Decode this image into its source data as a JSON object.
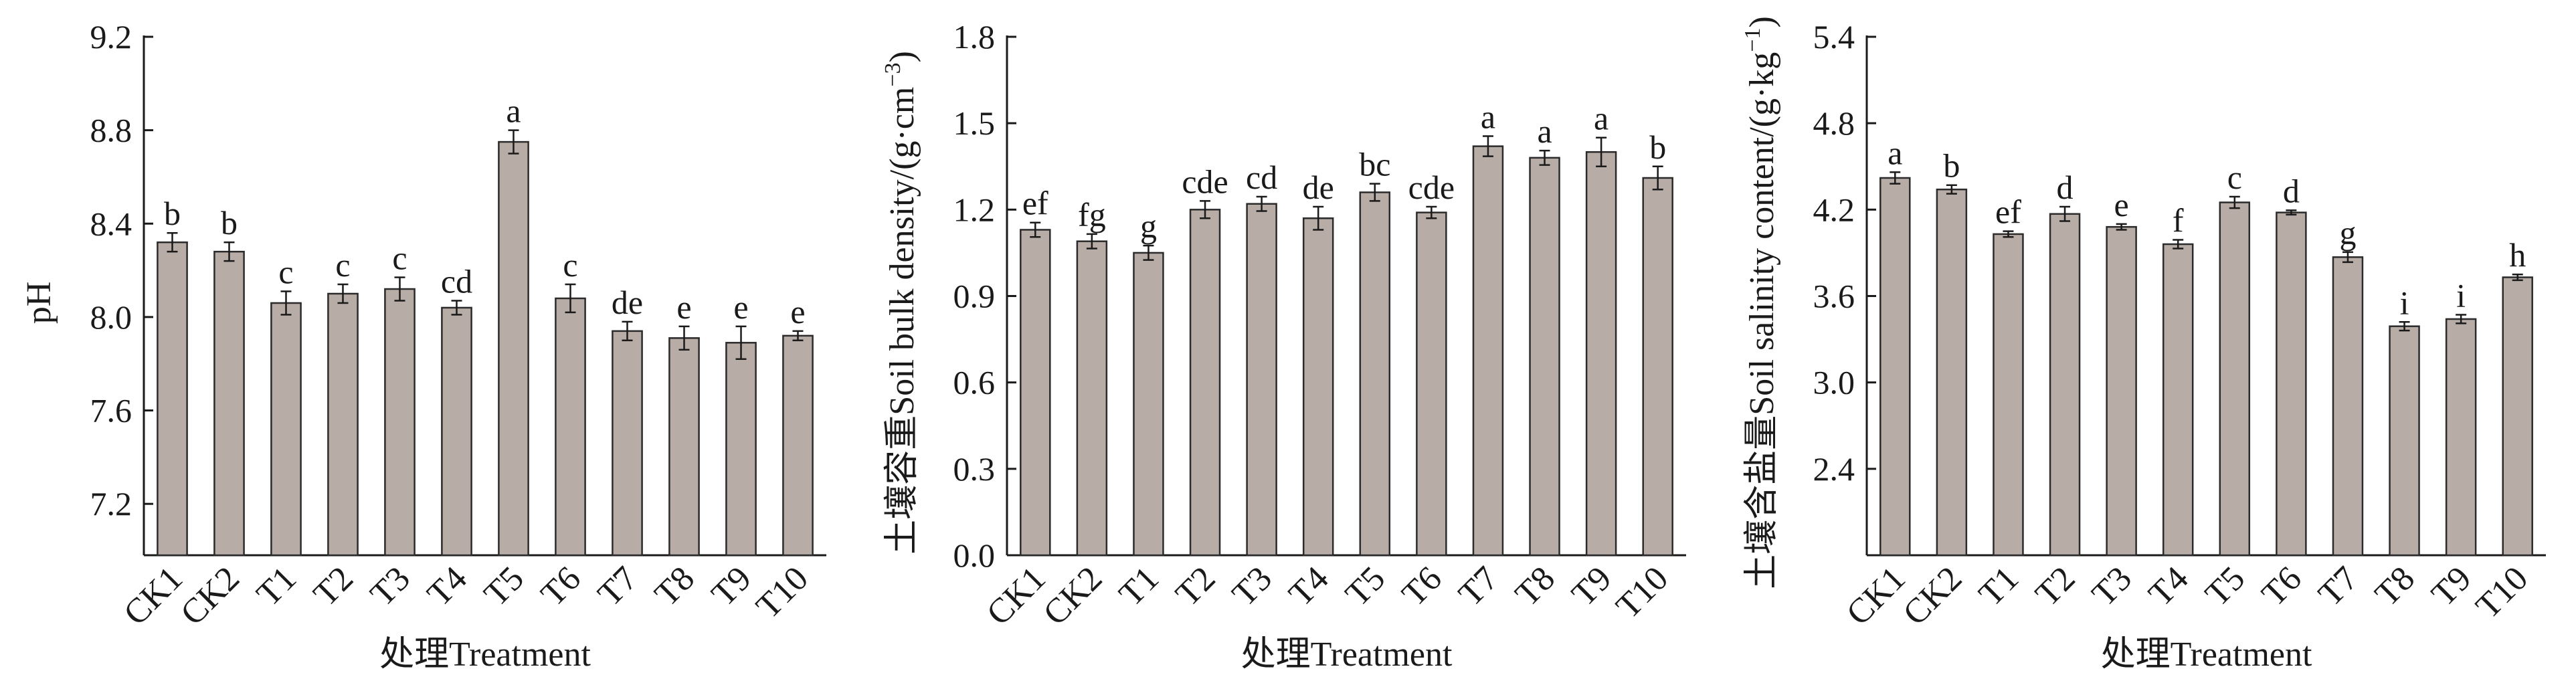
{
  "chart_data": [
    {
      "type": "bar",
      "categories": [
        "CK1",
        "CK2",
        "T1",
        "T2",
        "T3",
        "T4",
        "T5",
        "T6",
        "T7",
        "T8",
        "T9",
        "T10"
      ],
      "values": [
        8.32,
        8.28,
        8.06,
        8.1,
        8.12,
        8.04,
        8.75,
        8.08,
        7.94,
        7.91,
        7.89,
        7.92
      ],
      "errors": [
        0.04,
        0.04,
        0.05,
        0.04,
        0.05,
        0.03,
        0.05,
        0.06,
        0.04,
        0.05,
        0.07,
        0.02
      ],
      "letters": [
        "b",
        "b",
        "c",
        "c",
        "c",
        "cd",
        "a",
        "c",
        "de",
        "e",
        "e",
        "e"
      ],
      "ylabel": "pH",
      "ylabel_cn": "",
      "xlabel": "处理Treatment",
      "ylim": [
        6.98,
        9.2
      ],
      "yticks": [
        "7.2",
        "7.6",
        "8.0",
        "8.4",
        "8.8",
        "9.2"
      ],
      "grid": false
    },
    {
      "type": "bar",
      "categories": [
        "CK1",
        "CK2",
        "T1",
        "T2",
        "T3",
        "T4",
        "T5",
        "T6",
        "T7",
        "T8",
        "T9",
        "T10"
      ],
      "values": [
        1.13,
        1.09,
        1.05,
        1.2,
        1.22,
        1.17,
        1.26,
        1.19,
        1.42,
        1.38,
        1.4,
        1.31
      ],
      "errors": [
        0.025,
        0.025,
        0.025,
        0.03,
        0.025,
        0.04,
        0.03,
        0.02,
        0.035,
        0.025,
        0.05,
        0.04
      ],
      "letters": [
        "ef",
        "fg",
        "g",
        "cde",
        "cd",
        "de",
        "bc",
        "cde",
        "a",
        "a",
        "a",
        "b"
      ],
      "ylabel": "Soil bulk density/(g·cm",
      "ylabel_sup": "−3",
      "ylabel_close": ")",
      "ylabel_cn": "土壤容重",
      "xlabel": "处理Treatment",
      "ylim": [
        0,
        1.8
      ],
      "yticks": [
        "0.0",
        "0.3",
        "0.6",
        "0.9",
        "1.2",
        "1.5",
        "1.8"
      ],
      "grid": false
    },
    {
      "type": "bar",
      "categories": [
        "CK1",
        "CK2",
        "T1",
        "T2",
        "T3",
        "T4",
        "T5",
        "T6",
        "T7",
        "T8",
        "T9",
        "T10"
      ],
      "values": [
        4.42,
        4.34,
        4.03,
        4.17,
        4.08,
        3.96,
        4.25,
        4.18,
        3.87,
        3.39,
        3.44,
        3.73
      ],
      "errors": [
        0.04,
        0.03,
        0.02,
        0.05,
        0.02,
        0.03,
        0.04,
        0.015,
        0.035,
        0.03,
        0.03,
        0.02
      ],
      "letters": [
        "a",
        "b",
        "ef",
        "d",
        "e",
        "f",
        "c",
        "d",
        "g",
        "i",
        "i",
        "h"
      ],
      "ylabel": "Soil salinity content/(g·kg",
      "ylabel_sup": "−1",
      "ylabel_close": ")",
      "ylabel_cn": "土壤含盐量",
      "xlabel": "处理Treatment",
      "ylim": [
        1.8,
        5.4
      ],
      "yticks": [
        "2.4",
        "3.0",
        "3.6",
        "4.2",
        "4.8",
        "5.4"
      ],
      "grid": false
    }
  ]
}
